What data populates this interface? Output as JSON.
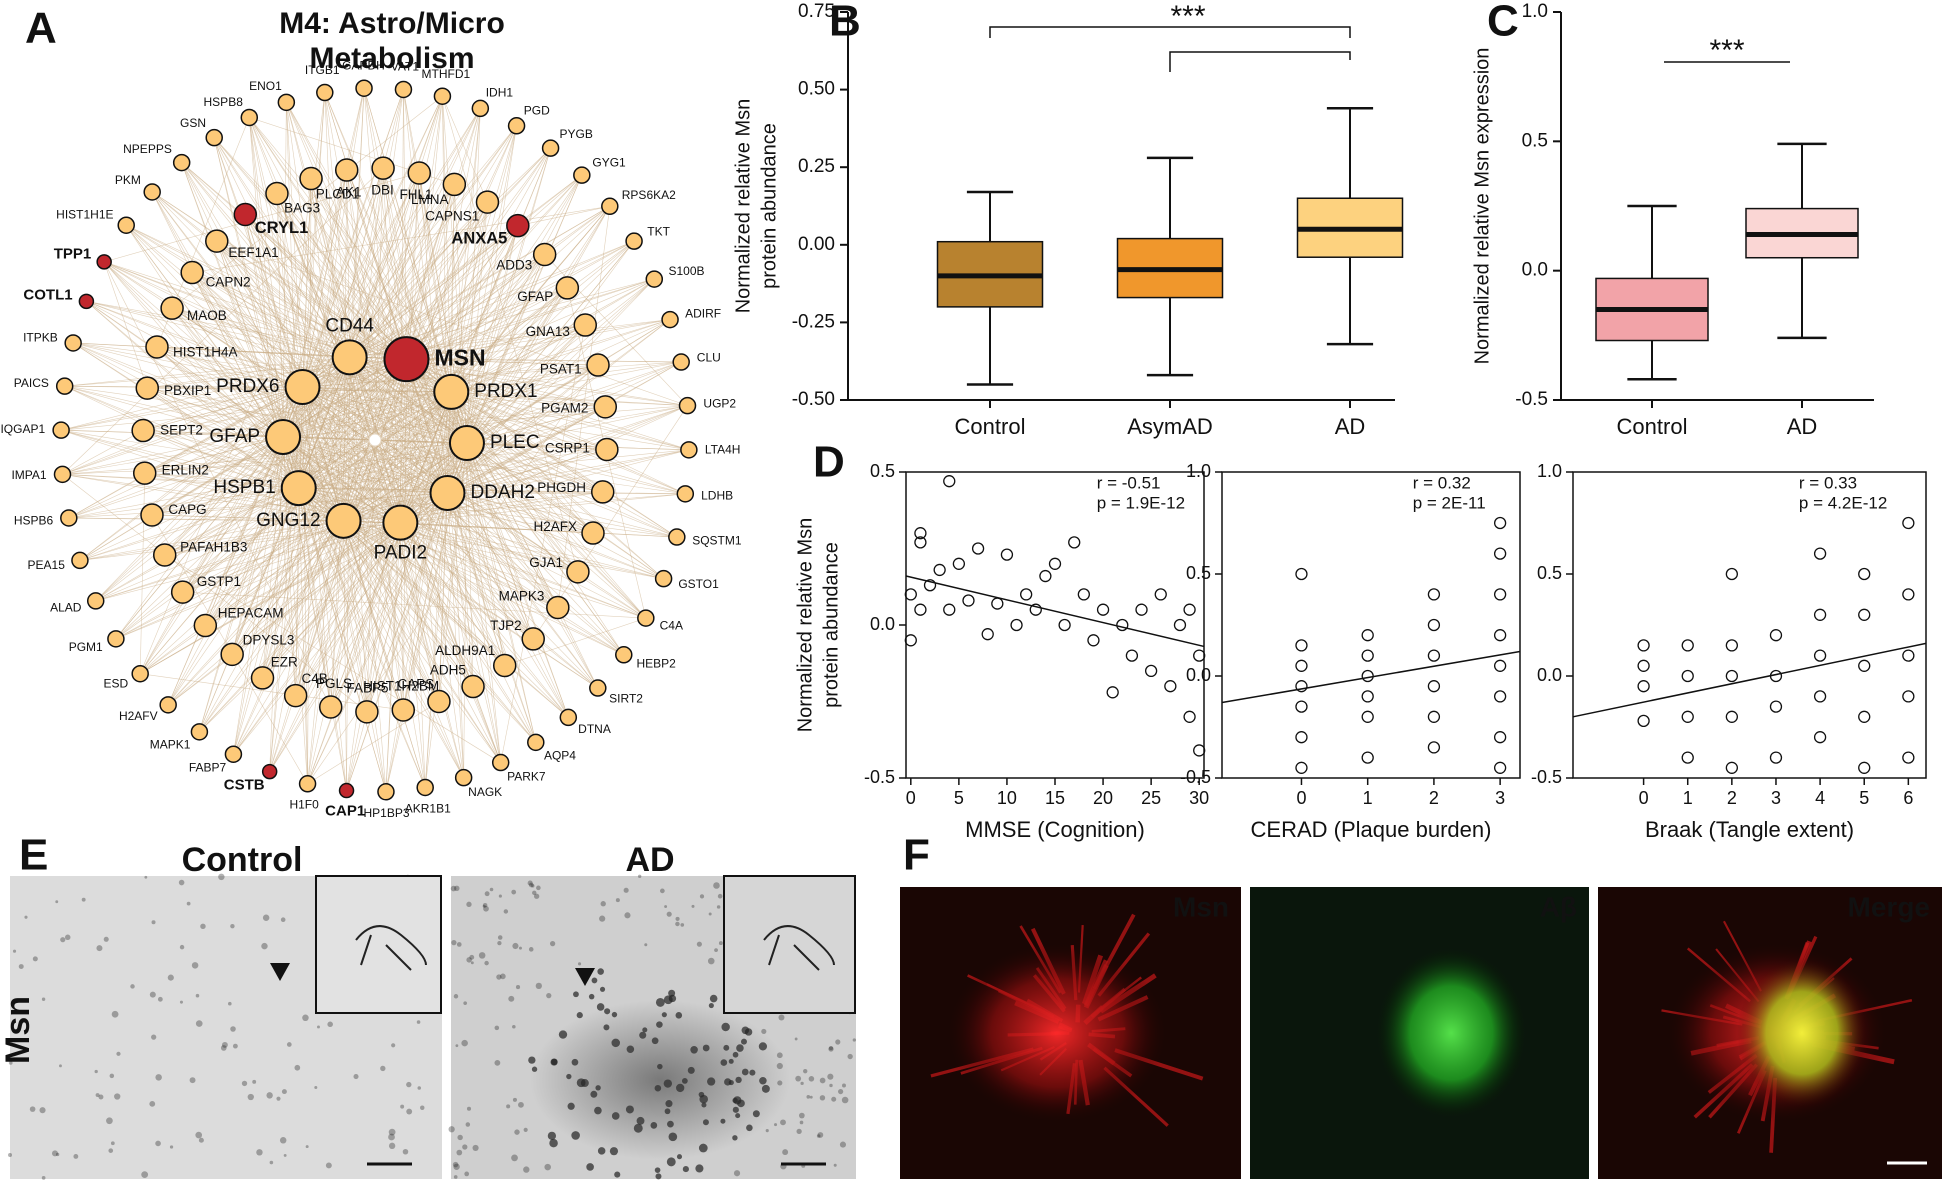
{
  "panel_labels": [
    "A",
    "B",
    "C",
    "D",
    "E",
    "F"
  ],
  "network": {
    "title": [
      "M4: Astro/Micro",
      "Metabolism"
    ],
    "color": "#fdc978",
    "highlight_color": "#c1272d",
    "hub": [
      {
        "label": "MSN",
        "highlight": true
      },
      {
        "label": "PRDX1"
      },
      {
        "label": "PLEC"
      },
      {
        "label": "DDAH2"
      },
      {
        "label": "PADI2"
      },
      {
        "label": "GNG12"
      },
      {
        "label": "HSPB1"
      },
      {
        "label": "GFAP"
      },
      {
        "label": "PRDX6"
      },
      {
        "label": "CD44"
      }
    ],
    "middle": [
      {
        "label": "ANXA5",
        "highlight": true
      },
      {
        "label": "ADD3"
      },
      {
        "label": "GFAP"
      },
      {
        "label": "GNA13"
      },
      {
        "label": "PSAT1"
      },
      {
        "label": "PGAM2"
      },
      {
        "label": "CSRP1"
      },
      {
        "label": "PHGDH"
      },
      {
        "label": "H2AFX"
      },
      {
        "label": "GJA1"
      },
      {
        "label": "MAPK3"
      },
      {
        "label": "TJP2"
      },
      {
        "label": "ALDH9A1"
      },
      {
        "label": "ADH5"
      },
      {
        "label": "CAPS"
      },
      {
        "label": "HIST1H2BM"
      },
      {
        "label": "FABP5"
      },
      {
        "label": "PGLS"
      },
      {
        "label": "C4B"
      },
      {
        "label": "EZR"
      },
      {
        "label": "DPYSL3"
      },
      {
        "label": "HEPACAM"
      },
      {
        "label": "GSTP1"
      },
      {
        "label": "PAFAH1B3"
      },
      {
        "label": "CAPG"
      },
      {
        "label": "ERLIN2"
      },
      {
        "label": "SEPT2"
      },
      {
        "label": "PBXIP1"
      },
      {
        "label": "HIST1H4A"
      },
      {
        "label": "MAOB"
      },
      {
        "label": "CAPN2"
      },
      {
        "label": "EEF1A1"
      },
      {
        "label": "CRYL1",
        "highlight": true
      },
      {
        "label": "BAG3"
      },
      {
        "label": "PLCD1"
      },
      {
        "label": "AK1"
      },
      {
        "label": "DBI"
      },
      {
        "label": "FHL1"
      },
      {
        "label": "LMNA"
      },
      {
        "label": "CAPNS1"
      }
    ],
    "outer": [
      {
        "label": "GAPDH"
      },
      {
        "label": "VAT1"
      },
      {
        "label": "MTHFD1"
      },
      {
        "label": "IDH1"
      },
      {
        "label": "PGD"
      },
      {
        "label": "PYGB"
      },
      {
        "label": "GYG1"
      },
      {
        "label": "RPS6KA2"
      },
      {
        "label": "TKT"
      },
      {
        "label": "S100B"
      },
      {
        "label": "ADIRF"
      },
      {
        "label": "CLU"
      },
      {
        "label": "UGP2"
      },
      {
        "label": "LTA4H"
      },
      {
        "label": "LDHB"
      },
      {
        "label": "SQSTM1"
      },
      {
        "label": "GSTO1"
      },
      {
        "label": "C4A"
      },
      {
        "label": "HEBP2"
      },
      {
        "label": "SIRT2"
      },
      {
        "label": "DTNA"
      },
      {
        "label": "AQP4"
      },
      {
        "label": "PARK7"
      },
      {
        "label": "NAGK"
      },
      {
        "label": "AKR1B1"
      },
      {
        "label": "HP1BP3"
      },
      {
        "label": "CAP1",
        "highlight": true
      },
      {
        "label": "H1F0"
      },
      {
        "label": "CSTB",
        "highlight": true
      },
      {
        "label": "FABP7"
      },
      {
        "label": "MAPK1"
      },
      {
        "label": "H2AFV"
      },
      {
        "label": "ESD"
      },
      {
        "label": "PGM1"
      },
      {
        "label": "ALAD"
      },
      {
        "label": "PEA15"
      },
      {
        "label": "HSPB6"
      },
      {
        "label": "IMPA1"
      },
      {
        "label": "IQGAP1"
      },
      {
        "label": "PAICS"
      },
      {
        "label": "ITPKB"
      },
      {
        "label": "COTL1",
        "highlight": true
      },
      {
        "label": "TPP1",
        "highlight": true
      },
      {
        "label": "HIST1H1E"
      },
      {
        "label": "PKM"
      },
      {
        "label": "NPEPPS"
      },
      {
        "label": "GSN"
      },
      {
        "label": "HSPB8"
      },
      {
        "label": "ENO1"
      },
      {
        "label": "ITGB1"
      }
    ]
  },
  "chart_data": [
    {
      "type": "box",
      "ylabel": [
        "Normalized relative Msn",
        "protein abundance"
      ],
      "categories": [
        "Control",
        "AsymAD",
        "AD"
      ],
      "colors": [
        "#b8822f",
        "#f0972c",
        "#fdd27f"
      ],
      "min": [
        -0.45,
        -0.42,
        -0.32
      ],
      "q1": [
        -0.2,
        -0.17,
        -0.04
      ],
      "median": [
        -0.1,
        -0.08,
        0.05
      ],
      "q3": [
        0.01,
        0.02,
        0.15
      ],
      "max": [
        0.17,
        0.28,
        0.44
      ],
      "ylim": [
        -0.5,
        0.75
      ],
      "yticks": [
        {
          "value": -0.5,
          "label": "-0.50"
        },
        -0.25,
        {
          "value": 0,
          "label": "0.00"
        },
        0.25,
        {
          "value": 0.5,
          "label": "0.50"
        },
        0.75
      ],
      "annotations": [
        "***"
      ]
    },
    {
      "type": "box",
      "ylabel": [
        "Normalized relative Msn expression"
      ],
      "categories": [
        "Control",
        "AD"
      ],
      "colors": [
        "#f2a3a8",
        "#fad6d4"
      ],
      "min": [
        -0.42,
        -0.26
      ],
      "q1": [
        -0.27,
        0.05
      ],
      "median": [
        -0.15,
        0.14
      ],
      "q3": [
        -0.03,
        0.24
      ],
      "max": [
        0.25,
        0.49
      ],
      "ylim": [
        -0.5,
        1.0
      ],
      "yticks": [
        -0.5,
        {
          "value": 0,
          "label": "0.0"
        },
        0.5,
        {
          "value": 1,
          "label": "1.0"
        }
      ],
      "annotations": [
        "***"
      ]
    },
    {
      "type": "scatter",
      "ylabel": [
        "Normalized relative Msn",
        "protein abundance"
      ],
      "xlabel": "MMSE (Cognition)",
      "x": [
        0,
        0,
        1,
        1,
        1,
        2,
        3,
        4,
        4,
        5,
        6,
        7,
        8,
        9,
        10,
        11,
        12,
        13,
        14,
        15,
        16,
        17,
        18,
        19,
        20,
        21,
        22,
        23,
        24,
        25,
        26,
        27,
        28,
        29,
        29,
        30,
        30
      ],
      "values": [
        0.1,
        -0.05,
        0.3,
        0.27,
        0.05,
        0.13,
        0.18,
        0.47,
        0.05,
        0.2,
        0.08,
        0.25,
        -0.03,
        0.07,
        0.23,
        0.0,
        0.1,
        0.05,
        0.16,
        0.2,
        0.0,
        0.27,
        0.1,
        -0.05,
        0.05,
        -0.22,
        0.0,
        -0.1,
        0.05,
        -0.15,
        0.1,
        -0.2,
        0.0,
        -0.3,
        0.05,
        -0.1,
        -0.41
      ],
      "fit": {
        "x": [
          -0.5,
          30.5
        ],
        "values": [
          0.16,
          -0.07
        ]
      },
      "xlim": [
        -0.5,
        30.5
      ],
      "xticks": [
        0,
        5,
        10,
        15,
        20,
        25,
        30
      ],
      "ylim": [
        -0.5,
        0.5
      ],
      "yticks": [
        -0.5,
        {
          "value": 0,
          "label": "0.0"
        },
        0.5
      ],
      "annotations": [
        "r = -0.51",
        "p = 1.9E-12"
      ]
    },
    {
      "type": "scatter",
      "xlabel": "CERAD (Plaque burden)",
      "x": [
        0,
        0,
        0,
        0,
        0,
        0,
        0,
        1,
        1,
        1,
        1,
        1,
        1,
        2,
        2,
        2,
        2,
        2,
        2,
        3,
        3,
        3,
        3,
        3,
        3,
        3,
        3
      ],
      "values": [
        -0.45,
        -0.3,
        -0.15,
        -0.05,
        0.05,
        0.15,
        0.5,
        -0.4,
        -0.2,
        -0.1,
        0.0,
        0.1,
        0.2,
        -0.35,
        -0.2,
        -0.05,
        0.1,
        0.25,
        0.4,
        -0.45,
        -0.3,
        -0.1,
        0.05,
        0.2,
        0.4,
        0.6,
        0.75
      ],
      "fit": {
        "x": [
          -1.2,
          3.3
        ],
        "values": [
          -0.13,
          0.12
        ]
      },
      "xlim": [
        -1.2,
        3.3
      ],
      "xticks": [
        0,
        1,
        2,
        3
      ],
      "ylim": [
        -0.5,
        1.0
      ],
      "yticks": [
        -0.5,
        {
          "value": 0,
          "label": "0.0"
        },
        0.5,
        {
          "value": 1,
          "label": "1.0"
        }
      ],
      "annotations": [
        "r = 0.32",
        "p = 2E-11"
      ]
    },
    {
      "type": "scatter",
      "xlabel": "Braak (Tangle extent)",
      "x": [
        0,
        0,
        0,
        0,
        1,
        1,
        1,
        1,
        2,
        2,
        2,
        2,
        2,
        3,
        3,
        3,
        3,
        4,
        4,
        4,
        4,
        4,
        5,
        5,
        5,
        5,
        5,
        6,
        6,
        6,
        6,
        6
      ],
      "values": [
        -0.22,
        -0.05,
        0.05,
        0.15,
        -0.4,
        -0.2,
        0.0,
        0.15,
        -0.45,
        -0.2,
        0.0,
        0.15,
        0.5,
        -0.4,
        -0.15,
        0.0,
        0.2,
        -0.3,
        -0.1,
        0.1,
        0.3,
        0.6,
        -0.45,
        -0.2,
        0.05,
        0.3,
        0.5,
        -0.4,
        -0.1,
        0.1,
        0.4,
        0.75
      ],
      "fit": {
        "x": [
          -1.6,
          6.4
        ],
        "values": [
          -0.2,
          0.16
        ]
      },
      "xlim": [
        -1.6,
        6.4
      ],
      "xticks": [
        0,
        1,
        2,
        3,
        4,
        5,
        6
      ],
      "ylim": [
        -0.5,
        1.0
      ],
      "yticks": [
        -0.5,
        {
          "value": 0,
          "label": "0.0"
        },
        0.5,
        {
          "value": 1,
          "label": "1.0"
        }
      ],
      "annotations": [
        "r = 0.33",
        "p = 4.2E-12"
      ]
    }
  ],
  "images": {
    "E": {
      "columns": [
        "Control",
        "AD"
      ],
      "row_label": "Msn"
    },
    "F": {
      "channels": [
        "Msn",
        "Aβ",
        "Merge"
      ],
      "colors": [
        "#e8252a",
        "#3cbf3c",
        "#ffffff"
      ]
    }
  }
}
